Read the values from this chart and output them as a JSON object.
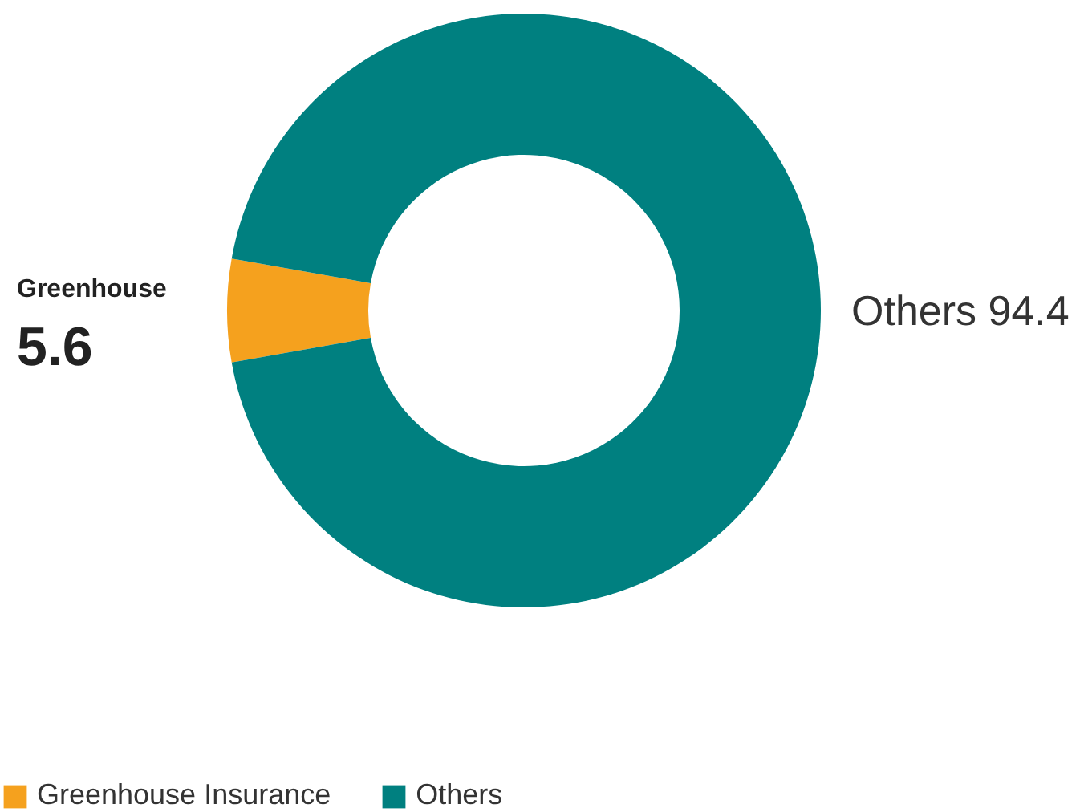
{
  "chart_data": {
    "type": "donut",
    "categories": [
      "Greenhouse Insurance",
      "Others"
    ],
    "values": [
      5.6,
      94.4
    ],
    "colors": [
      "#f5a11e",
      "#008080"
    ],
    "value_labels": [
      "5.6",
      "94.4"
    ],
    "annotations": [
      "Greenhouse",
      "Others"
    ],
    "legend": "bottom left"
  }
}
